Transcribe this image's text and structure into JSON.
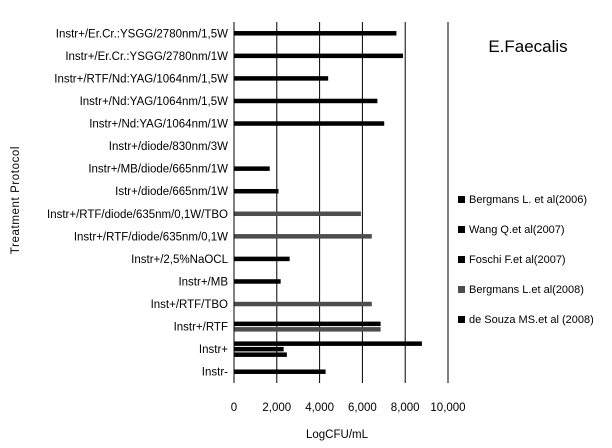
{
  "chart_data": {
    "type": "bar",
    "orientation": "horizontal",
    "title": "E.Faecalis",
    "xlabel": "LogCFU/mL",
    "ylabel": "Treatment Protocol",
    "xlim": [
      0,
      10000
    ],
    "xticks": [
      "0",
      "2,000",
      "4,000",
      "6,000",
      "8,000",
      "10,000"
    ],
    "grid": "vertical",
    "legend_position": "right",
    "colors": {
      "axis": "#000000",
      "grid": "#000000",
      "Bergmans L. et al(2006)": "#000000",
      "Wang Q.et al(2007)": "#000000",
      "Foschi F.et al(2007)": "#000000",
      "Bergmans L.et al(2008)": "#4d4d4d",
      "de Souza MS.et al (2008)": "#000000"
    },
    "categories": [
      "Instr+/Er.Cr.:YSGG/2780nm/1,5W",
      "Instr+/Er.Cr.:YSGG/2780nm/1W",
      "Instr+/RTF/Nd:YAG/1064nm/1,5W",
      "Instr+/Nd:YAG/1064nm/1,5W",
      "Instr+/Nd:YAG/1064nm/1W",
      "Instr+/diode/830nm/3W",
      "Instr+/MB/diode/665nm/1W",
      "Istr+/diode/665nm/1W",
      "Instr+/RTF/diode/635nm/0,1W/TBO",
      "Instr+/RTF/diode/635nm/0,1W",
      "Instr+/2,5%NaOCL",
      "Instr+/MB",
      "Inst+/RTF/TBO",
      "Instr+/RTF",
      "Instr+",
      "Instr-"
    ],
    "series": [
      {
        "name": "Bergmans L. et al(2006)",
        "values": [
          null,
          null,
          null,
          null,
          null,
          null,
          null,
          null,
          null,
          null,
          null,
          null,
          null,
          6850,
          8780,
          null
        ]
      },
      {
        "name": "Wang Q.et al(2007)",
        "values": [
          7590,
          7900,
          4400,
          6700,
          7020,
          0,
          1670,
          2080,
          null,
          null,
          2600,
          2180,
          null,
          null,
          2320,
          null
        ]
      },
      {
        "name": "Foschi F.et al(2007)",
        "values": [
          null,
          null,
          null,
          null,
          null,
          null,
          null,
          null,
          null,
          null,
          null,
          null,
          null,
          null,
          2470,
          null
        ]
      },
      {
        "name": "Bergmans L.et al(2008)",
        "values": [
          null,
          null,
          null,
          null,
          null,
          null,
          null,
          null,
          5930,
          6440,
          null,
          null,
          6440,
          6850,
          null,
          null
        ]
      },
      {
        "name": "de Souza MS.et al (2008)",
        "values": [
          null,
          null,
          null,
          null,
          null,
          null,
          null,
          null,
          null,
          null,
          null,
          null,
          null,
          null,
          null,
          4280
        ]
      }
    ]
  }
}
